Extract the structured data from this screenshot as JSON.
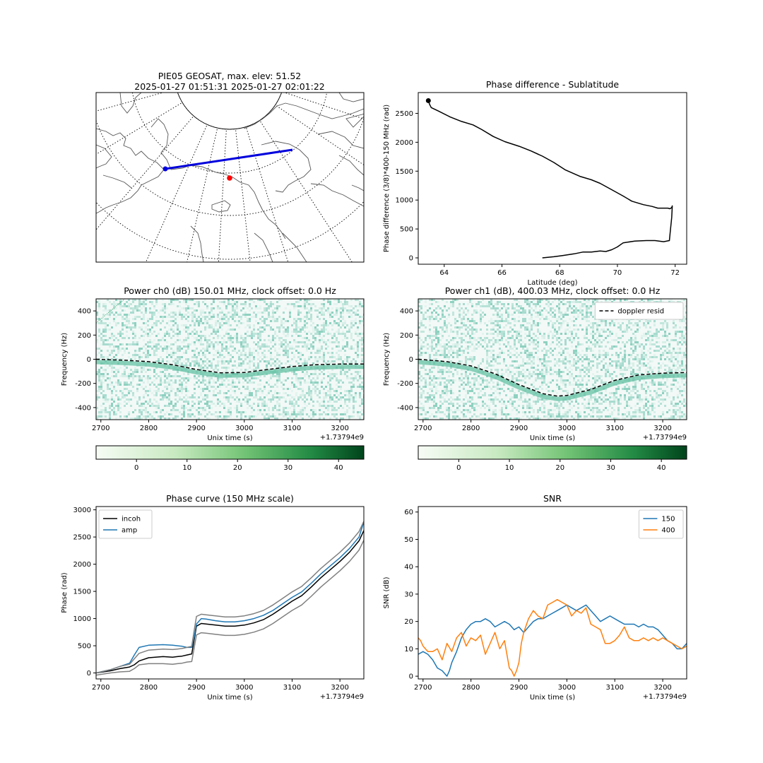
{
  "chart_data": [
    {
      "type": "map",
      "title_line1": "PIE05 GEOSAT, max. elev: 51.52",
      "title_line2": "2025-01-27 01:51:31 2025-01-27 02:01:22",
      "colors": {
        "track": "#0000dd",
        "station": "#ff0000",
        "coast": "#555555",
        "grid": "#000000"
      }
    },
    {
      "type": "line",
      "title": "Phase difference - Sublatitude",
      "xlabel": "Latitude (deg)",
      "ylabel": "Phase difference (3/8)*400-150 MHz (rad)",
      "xlim": [
        63.1,
        72.4
      ],
      "ylim": [
        -110,
        2860
      ],
      "xticks": [
        64,
        66,
        68,
        70,
        72
      ],
      "yticks": [
        0,
        500,
        1000,
        1500,
        2000,
        2500
      ],
      "series": [
        {
          "color": "#000000",
          "x": [
            63.45,
            63.5,
            63.55,
            63.8,
            64.2,
            64.6,
            65.0,
            65.3,
            65.7,
            66.1,
            66.6,
            67.0,
            67.4,
            67.8,
            68.2,
            68.7,
            69.1,
            69.4,
            69.8,
            70.2,
            70.5,
            70.9,
            71.2,
            71.4,
            71.6,
            71.75,
            71.82,
            71.88,
            71.9,
            71.88,
            71.83,
            71.8,
            71.6,
            71.3,
            71.0,
            70.6,
            70.2,
            70.0,
            69.8,
            69.6,
            69.4,
            69.1,
            68.8,
            68.5,
            68.1,
            67.8,
            67.4
          ],
          "y": [
            2720,
            2650,
            2600,
            2540,
            2440,
            2360,
            2300,
            2220,
            2100,
            2010,
            1930,
            1850,
            1760,
            1650,
            1520,
            1410,
            1350,
            1290,
            1180,
            1070,
            980,
            920,
            890,
            860,
            860,
            860,
            850,
            870,
            900,
            700,
            450,
            300,
            280,
            300,
            300,
            290,
            260,
            190,
            140,
            110,
            120,
            100,
            100,
            70,
            40,
            20,
            0
          ]
        },
        {
          "type": "point",
          "color": "#000000",
          "x": [
            63.45
          ],
          "y": [
            2720
          ]
        }
      ]
    },
    {
      "type": "heatmap",
      "title": "Power ch0 (dB) 150.01 MHz, clock offset: 0.0 Hz",
      "xlabel": "Unix time (s)",
      "ylabel": "Frequency (Hz)",
      "offset_label": "+1.73794e9",
      "xlim": [
        2690,
        3250
      ],
      "ylim": [
        -500,
        500
      ],
      "xticks": [
        2700,
        2800,
        2900,
        3000,
        3100,
        3200
      ],
      "yticks": [
        -400,
        -200,
        0,
        200,
        400
      ],
      "colorbar": {
        "range": [
          -8,
          45
        ],
        "ticks": [
          0,
          10,
          20,
          30,
          40
        ]
      },
      "series": [
        {
          "name": "doppler resid",
          "style": "dashed",
          "color": "#000000",
          "x": [
            2690,
            2750,
            2800,
            2850,
            2900,
            2950,
            3000,
            3050,
            3100,
            3150,
            3200,
            3250
          ],
          "y": [
            0,
            -8,
            -20,
            -45,
            -85,
            -112,
            -110,
            -85,
            -60,
            -45,
            -40,
            -40
          ]
        }
      ]
    },
    {
      "type": "heatmap",
      "title": "Power ch1 (dB), 400.03 MHz, clock offset: 0.0 Hz",
      "xlabel": "Unix time (s)",
      "ylabel": "Frequency (Hz)",
      "offset_label": "+1.73794e9",
      "legend": "top-right",
      "xlim": [
        2690,
        3250
      ],
      "ylim": [
        -500,
        500
      ],
      "xticks": [
        2700,
        2800,
        2900,
        3000,
        3100,
        3200
      ],
      "yticks": [
        -400,
        -200,
        0,
        200,
        400
      ],
      "colorbar": {
        "range": [
          -8,
          45
        ],
        "ticks": [
          0,
          10,
          20,
          30,
          40
        ]
      },
      "series": [
        {
          "name": "doppler resid",
          "style": "dashed",
          "color": "#000000",
          "x": [
            2690,
            2750,
            2800,
            2850,
            2900,
            2950,
            2980,
            3000,
            3050,
            3100,
            3150,
            3200,
            3250
          ],
          "y": [
            0,
            -20,
            -55,
            -120,
            -210,
            -285,
            -305,
            -300,
            -250,
            -175,
            -130,
            -115,
            -110
          ]
        }
      ]
    },
    {
      "type": "line",
      "title": "Phase curve (150 MHz scale)",
      "xlabel": "Unix time (s)",
      "ylabel": "Phase (rad)",
      "offset_label": "+1.73794e9",
      "legend": "top-left",
      "xlim": [
        2690,
        3250
      ],
      "ylim": [
        -110,
        3060
      ],
      "xticks": [
        2700,
        2800,
        2900,
        3000,
        3100,
        3200
      ],
      "yticks": [
        0,
        500,
        1000,
        1500,
        2000,
        2500,
        3000
      ],
      "series": [
        {
          "name": "incoh",
          "color": "#000000",
          "x": [
            2690,
            2720,
            2740,
            2760,
            2770,
            2780,
            2800,
            2830,
            2850,
            2860,
            2870,
            2880,
            2890,
            2895,
            2900,
            2910,
            2920,
            2940,
            2960,
            2980,
            3000,
            3020,
            3040,
            3060,
            3080,
            3100,
            3120,
            3140,
            3160,
            3180,
            3200,
            3220,
            3240,
            3250
          ],
          "y": [
            0,
            40,
            80,
            110,
            150,
            220,
            280,
            300,
            290,
            300,
            310,
            330,
            350,
            600,
            860,
            910,
            900,
            880,
            860,
            860,
            880,
            920,
            980,
            1080,
            1200,
            1320,
            1420,
            1580,
            1750,
            1900,
            2050,
            2220,
            2430,
            2620
          ]
        },
        {
          "name": "amp",
          "color": "#1f77b4",
          "x": [
            2690,
            2720,
            2740,
            2760,
            2770,
            2780,
            2800,
            2830,
            2850,
            2870,
            2880,
            2890,
            2895,
            2900,
            2910,
            2920,
            2940,
            2960,
            2980,
            3000,
            3020,
            3040,
            3060,
            3080,
            3100,
            3120,
            3140,
            3160,
            3180,
            3200,
            3220,
            3240,
            3250
          ],
          "y": [
            0,
            60,
            120,
            180,
            330,
            470,
            510,
            520,
            510,
            490,
            470,
            470,
            650,
            900,
            1000,
            990,
            960,
            940,
            940,
            960,
            1000,
            1060,
            1150,
            1270,
            1390,
            1490,
            1650,
            1820,
            1970,
            2120,
            2290,
            2500,
            2780
          ]
        },
        {
          "color": "#808080",
          "x": [
            2690,
            2720,
            2740,
            2760,
            2770,
            2780,
            2800,
            2830,
            2850,
            2860,
            2870,
            2880,
            2890,
            2895,
            2900,
            2910,
            2920,
            2940,
            2960,
            2980,
            3000,
            3020,
            3040,
            3060,
            3080,
            3100,
            3120,
            3140,
            3160,
            3180,
            3200,
            3220,
            3240,
            3250
          ],
          "y": [
            0,
            60,
            120,
            160,
            260,
            360,
            420,
            440,
            430,
            440,
            450,
            470,
            490,
            770,
            1040,
            1080,
            1070,
            1050,
            1030,
            1030,
            1050,
            1090,
            1150,
            1250,
            1370,
            1490,
            1590,
            1750,
            1920,
            2070,
            2220,
            2390,
            2600,
            2790
          ]
        },
        {
          "color": "#808080",
          "x": [
            2690,
            2720,
            2740,
            2760,
            2770,
            2780,
            2800,
            2830,
            2850,
            2860,
            2870,
            2880,
            2890,
            2895,
            2900,
            2910,
            2920,
            2940,
            2960,
            2980,
            3000,
            3020,
            3040,
            3060,
            3080,
            3100,
            3120,
            3140,
            3160,
            3180,
            3200,
            3220,
            3240,
            3250
          ],
          "y": [
            -40,
            0,
            20,
            30,
            80,
            150,
            170,
            170,
            160,
            170,
            180,
            200,
            210,
            450,
            700,
            740,
            730,
            710,
            690,
            690,
            710,
            750,
            810,
            910,
            1030,
            1150,
            1250,
            1410,
            1580,
            1730,
            1880,
            2050,
            2260,
            2440
          ]
        }
      ]
    },
    {
      "type": "line",
      "title": "SNR",
      "xlabel": "Unix time (s)",
      "ylabel": "SNR (dB)",
      "offset_label": "+1.73794e9",
      "legend": "top-right",
      "xlim": [
        2690,
        3250
      ],
      "ylim": [
        -1,
        62
      ],
      "xticks": [
        2700,
        2800,
        2900,
        3000,
        3100,
        3200
      ],
      "yticks": [
        0,
        10,
        20,
        30,
        40,
        50,
        60
      ],
      "series": [
        {
          "name": "150",
          "color": "#1f77b4",
          "x": [
            2690,
            2700,
            2710,
            2720,
            2730,
            2740,
            2745,
            2750,
            2755,
            2760,
            2770,
            2780,
            2790,
            2800,
            2810,
            2820,
            2830,
            2840,
            2850,
            2860,
            2870,
            2880,
            2890,
            2900,
            2910,
            2920,
            2930,
            2940,
            2950,
            2960,
            2970,
            2980,
            2990,
            3000,
            3010,
            3020,
            3030,
            3040,
            3050,
            3060,
            3070,
            3080,
            3090,
            3100,
            3110,
            3120,
            3130,
            3140,
            3150,
            3160,
            3170,
            3180,
            3190,
            3200,
            3210,
            3220,
            3230,
            3240,
            3250
          ],
          "y": [
            8,
            9,
            8,
            6,
            3,
            2,
            1,
            0,
            2,
            5,
            9,
            14,
            17,
            19,
            20,
            20,
            21,
            20,
            18,
            19,
            20,
            19,
            17,
            18,
            16,
            18,
            20,
            21,
            21,
            22,
            23,
            24,
            25,
            26,
            25,
            24,
            25,
            26,
            24,
            22,
            20,
            21,
            22,
            21,
            20,
            19,
            19,
            19,
            18,
            19,
            18,
            18,
            17,
            15,
            13,
            12,
            10,
            10,
            12
          ]
        },
        {
          "name": "400",
          "color": "#ff7f0e",
          "x": [
            2690,
            2695,
            2700,
            2710,
            2720,
            2730,
            2740,
            2750,
            2760,
            2770,
            2780,
            2790,
            2800,
            2810,
            2820,
            2830,
            2840,
            2850,
            2860,
            2870,
            2875,
            2880,
            2885,
            2890,
            2895,
            2900,
            2905,
            2910,
            2920,
            2930,
            2940,
            2950,
            2960,
            2970,
            2980,
            2990,
            3000,
            3010,
            3020,
            3030,
            3040,
            3050,
            3060,
            3070,
            3080,
            3090,
            3100,
            3110,
            3120,
            3130,
            3140,
            3150,
            3160,
            3170,
            3180,
            3190,
            3200,
            3210,
            3220,
            3230,
            3240,
            3250
          ],
          "y": [
            14,
            13,
            11,
            9,
            9,
            10,
            6,
            12,
            9,
            14,
            16,
            11,
            14,
            13,
            15,
            8,
            12,
            16,
            10,
            13,
            8,
            3,
            2,
            0,
            2,
            5,
            12,
            16,
            21,
            24,
            22,
            21,
            26,
            27,
            28,
            27,
            26,
            22,
            24,
            23,
            25,
            19,
            18,
            17,
            12,
            12,
            13,
            15,
            18,
            14,
            13,
            13,
            14,
            13,
            14,
            13,
            14,
            13,
            12,
            11,
            10,
            11
          ]
        }
      ]
    }
  ]
}
